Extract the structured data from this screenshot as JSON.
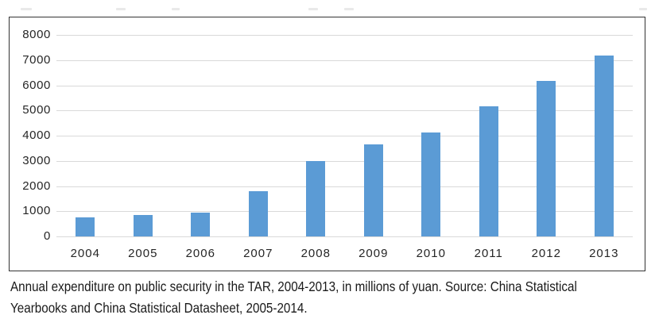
{
  "caption": {
    "line1": "Annual expenditure on public security in the TAR, 2004-2013, in millions of yuan. Source: China Statistical",
    "line2": "Yearbooks and China Statistical Datasheet, 2005-2014."
  },
  "chart_data": {
    "type": "bar",
    "categories": [
      "2004",
      "2005",
      "2006",
      "2007",
      "2008",
      "2009",
      "2010",
      "2011",
      "2012",
      "2013"
    ],
    "values": [
      750,
      860,
      950,
      1780,
      3000,
      3660,
      4140,
      5170,
      6160,
      7190
    ],
    "yticks": [
      0,
      1000,
      2000,
      3000,
      4000,
      5000,
      6000,
      7000,
      8000
    ],
    "ylim": [
      0,
      8000
    ],
    "xlabel": "",
    "ylabel": "",
    "grid": true,
    "legend": "none",
    "bar_color": "#5B9BD5",
    "gridline_color": "#D9D9D9",
    "frame_border_color": "#333333",
    "tick_label_color": "#262626"
  }
}
